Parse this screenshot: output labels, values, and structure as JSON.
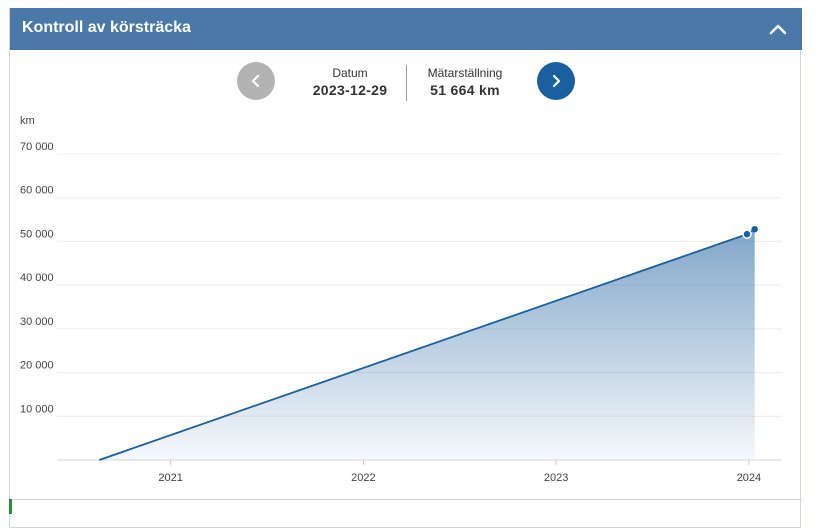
{
  "header": {
    "title": "Kontroll av körsträcka",
    "collapse_icon": "chevron-up-icon"
  },
  "nav": {
    "prev_icon": "chevron-left-icon",
    "next_icon": "chevron-right-icon",
    "date_label": "Datum",
    "date_value": "2023-12-29",
    "odometer_label": "Mätarställning",
    "odometer_value": "51 664 km"
  },
  "colors": {
    "header_bg": "#4a79a7",
    "accent_blue": "#1a5f9e",
    "line": "#1a5f9e",
    "prev_button": "#b3b3b3"
  },
  "chart_data": {
    "type": "area",
    "ylabel": "km",
    "y_ticks": [
      "70 000",
      "60 000",
      "50 000",
      "40 000",
      "30 000",
      "20 000",
      "10 000"
    ],
    "y_tick_values": [
      70000,
      60000,
      50000,
      40000,
      30000,
      20000,
      10000
    ],
    "x_ticks": [
      "2021",
      "2022",
      "2023",
      "2024"
    ],
    "x_tick_values": [
      2021,
      2022,
      2023,
      2024
    ],
    "ylim": [
      0,
      70000
    ],
    "xlim": [
      2020.4,
      2024.13
    ],
    "grid": true,
    "series": [
      {
        "points": [
          {
            "x": 2020.63,
            "y": 0
          },
          {
            "x": 2023.99,
            "y": 51664
          },
          {
            "x": 2024.03,
            "y": 52800
          }
        ]
      }
    ],
    "markers": [
      {
        "x": 2023.99,
        "y": 51664,
        "style": "selected"
      },
      {
        "x": 2024.03,
        "y": 52800,
        "style": "filled"
      }
    ]
  }
}
